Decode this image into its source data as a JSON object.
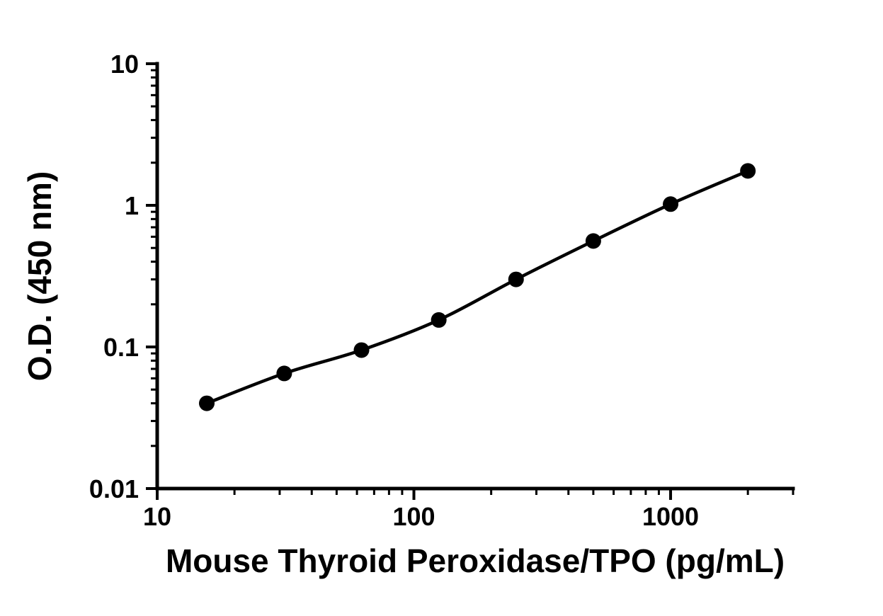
{
  "figure": {
    "background_color": "#ffffff"
  },
  "chart_data": {
    "type": "line",
    "title": "",
    "xlabel": "Mouse Thyroid Peroxidase/TPO (pg/mL)",
    "ylabel": "O.D. (450 nm)",
    "xscale": "log",
    "yscale": "log",
    "xlim": [
      10,
      3000
    ],
    "ylim": [
      0.01,
      10
    ],
    "x_major_ticks": [
      10,
      100,
      1000
    ],
    "x_tick_labels": [
      "10",
      "100",
      "1000"
    ],
    "y_major_ticks": [
      0.01,
      0.1,
      1,
      10
    ],
    "y_tick_labels": [
      "0.01",
      "0.1",
      "1",
      "10"
    ],
    "x": [
      15.6,
      31.25,
      62.5,
      125,
      250,
      500,
      1000,
      2000
    ],
    "y": [
      0.04,
      0.065,
      0.095,
      0.155,
      0.3,
      0.56,
      1.02,
      1.75
    ],
    "marker": "filled-circle",
    "marker_color": "#000000",
    "line_color": "#000000",
    "axis_color": "#000000",
    "grid": false,
    "legend": false
  }
}
